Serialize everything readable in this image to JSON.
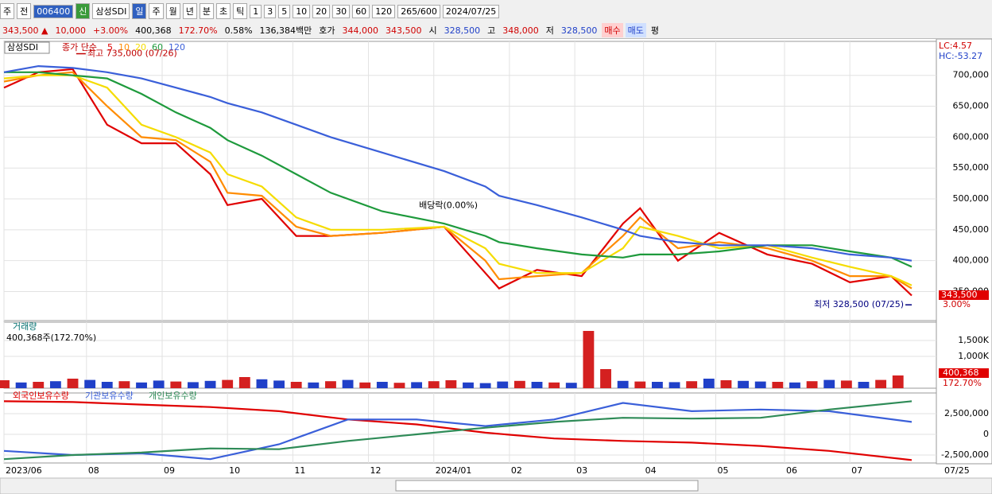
{
  "toolbar": {
    "items": [
      "주",
      "전",
      "006400",
      "신",
      "삼성SDI",
      "일",
      "주",
      "월",
      "년",
      "분",
      "초",
      "틱",
      "1",
      "3",
      "5",
      "10",
      "20",
      "30",
      "60",
      "120",
      "265/600",
      "2024/07/25"
    ]
  },
  "info": {
    "items": [
      "343,500 ▲",
      "10,000",
      "+3.00%",
      "400,368",
      "172.70%",
      "0.58%",
      "136,384백만",
      "호가",
      "344,000",
      "343,500",
      "시",
      "328,500",
      "고",
      "348,000",
      "저",
      "328,500",
      "매수",
      "매도",
      "평"
    ]
  },
  "chart_data": [
    {
      "type": "line",
      "panel": "price",
      "stock": "삼성SDI",
      "legend_prefix": "종가 단순",
      "xlim": [
        0,
        270
      ],
      "ylim": [
        303000,
        755000
      ],
      "yticks": [
        {
          "value": 700000,
          "label": "700,000"
        },
        {
          "value": 650000,
          "label": "650,000"
        },
        {
          "value": 600000,
          "label": "600,000"
        },
        {
          "value": 550000,
          "label": "550,000"
        },
        {
          "value": 500000,
          "label": "500,000"
        },
        {
          "value": 450000,
          "label": "450,000"
        },
        {
          "value": 400000,
          "label": "400,000"
        },
        {
          "value": 350000,
          "label": "350,000"
        }
      ],
      "xticks": [
        {
          "value": 0,
          "label": "2023/06"
        },
        {
          "value": 24,
          "label": "08"
        },
        {
          "value": 46,
          "label": "09"
        },
        {
          "value": 65,
          "label": "10"
        },
        {
          "value": 84,
          "label": "11"
        },
        {
          "value": 106,
          "label": "12"
        },
        {
          "value": 125,
          "label": "2024/01"
        },
        {
          "value": 147,
          "label": "02"
        },
        {
          "value": 166,
          "label": "03"
        },
        {
          "value": 186,
          "label": "04"
        },
        {
          "value": 207,
          "label": "05"
        },
        {
          "value": 227,
          "label": "06"
        },
        {
          "value": 246,
          "label": "07"
        }
      ],
      "x_end_label": "07/25",
      "x": [
        0,
        10,
        20,
        30,
        40,
        50,
        60,
        65,
        75,
        85,
        95,
        110,
        128,
        140,
        144,
        155,
        168,
        180,
        185,
        196,
        208,
        222,
        235,
        246,
        258,
        264
      ],
      "series": [
        {
          "name": "5",
          "color": "#e00000",
          "values": [
            680000,
            705000,
            710000,
            620000,
            590000,
            590000,
            540000,
            490000,
            500000,
            440000,
            440000,
            445000,
            455000,
            380000,
            355000,
            385000,
            375000,
            460000,
            485000,
            400000,
            445000,
            410000,
            395000,
            365000,
            375000,
            343500
          ]
        },
        {
          "name": "10",
          "color": "#ff8c00",
          "values": [
            690000,
            700000,
            705000,
            650000,
            600000,
            595000,
            560000,
            510000,
            505000,
            455000,
            440000,
            445000,
            455000,
            400000,
            370000,
            375000,
            380000,
            440000,
            470000,
            420000,
            430000,
            420000,
            400000,
            375000,
            375000,
            355000
          ]
        },
        {
          "name": "20",
          "color": "#f5dc00",
          "values": [
            695000,
            700000,
            700000,
            680000,
            620000,
            600000,
            575000,
            540000,
            520000,
            470000,
            450000,
            450000,
            455000,
            420000,
            395000,
            380000,
            380000,
            420000,
            455000,
            440000,
            420000,
            425000,
            405000,
            390000,
            375000,
            360000
          ]
        },
        {
          "name": "60",
          "color": "#1e9a3c",
          "values": [
            705000,
            705000,
            700000,
            695000,
            670000,
            640000,
            615000,
            595000,
            570000,
            540000,
            510000,
            480000,
            460000,
            440000,
            430000,
            420000,
            410000,
            405000,
            410000,
            410000,
            415000,
            425000,
            425000,
            415000,
            405000,
            390000
          ]
        },
        {
          "name": "120",
          "color": "#3a5fd9",
          "values": [
            705000,
            715000,
            712000,
            705000,
            695000,
            680000,
            665000,
            655000,
            640000,
            620000,
            600000,
            575000,
            545000,
            520000,
            505000,
            490000,
            470000,
            450000,
            440000,
            430000,
            425000,
            425000,
            420000,
            410000,
            405000,
            400000
          ]
        }
      ],
      "annotations": [
        {
          "text": "최고 735,000 (07/26)",
          "x": 21,
          "y": 735000,
          "color": "#c00000"
        },
        {
          "text": "배당락(0.00%)",
          "x": 126,
          "y": 470000,
          "color": "#000000"
        },
        {
          "text": "최저 328,500 (07/25)",
          "x": 264,
          "y": 328500,
          "color": "#000080"
        }
      ],
      "right_labels": [
        "LC:4.57",
        "HC:-53.27"
      ],
      "last_label": "343,500",
      "last_change": "3.00%"
    },
    {
      "type": "bar",
      "panel": "volume",
      "title": "거래량",
      "subtitle": "400,368주(172.70%)",
      "xlim": [
        0,
        270
      ],
      "ylim": [
        0,
        2075
      ],
      "yticks": [
        {
          "value": 1500,
          "label": "1,500K"
        },
        {
          "value": 1000,
          "label": "1,000K"
        }
      ],
      "up_color": "#d42020",
      "down_color": "#2040c8",
      "x": [
        0,
        5,
        10,
        15,
        20,
        25,
        30,
        35,
        40,
        45,
        50,
        55,
        60,
        65,
        70,
        75,
        80,
        85,
        90,
        95,
        100,
        105,
        110,
        115,
        120,
        125,
        130,
        135,
        140,
        145,
        150,
        155,
        160,
        165,
        170,
        175,
        180,
        185,
        190,
        195,
        200,
        205,
        210,
        215,
        220,
        225,
        230,
        235,
        240,
        245,
        250,
        255,
        260
      ],
      "values": [
        250,
        180,
        200,
        220,
        300,
        260,
        200,
        220,
        180,
        240,
        210,
        190,
        230,
        260,
        350,
        280,
        240,
        200,
        180,
        220,
        260,
        180,
        200,
        170,
        190,
        220,
        250,
        180,
        160,
        210,
        230,
        200,
        180,
        170,
        1800,
        600,
        230,
        210,
        200,
        190,
        220,
        300,
        250,
        230,
        210,
        200,
        180,
        220,
        260,
        240,
        200,
        260,
        400.368
      ],
      "directions": [
        "up",
        "down",
        "up",
        "down",
        "up",
        "down",
        "down",
        "up",
        "down",
        "down",
        "up",
        "down",
        "down",
        "up",
        "up",
        "down",
        "down",
        "up",
        "down",
        "up",
        "down",
        "up",
        "down",
        "up",
        "down",
        "up",
        "up",
        "down",
        "down",
        "down",
        "up",
        "down",
        "up",
        "down",
        "up",
        "up",
        "down",
        "up",
        "down",
        "down",
        "up",
        "down",
        "up",
        "down",
        "down",
        "up",
        "down",
        "up",
        "down",
        "up",
        "down",
        "up",
        "up"
      ],
      "last_label": "400,368",
      "last_change": "172.70%"
    },
    {
      "type": "line",
      "panel": "ownership",
      "xlim": [
        0,
        270
      ],
      "ylim": [
        -3460000,
        5000000
      ],
      "yticks": [
        {
          "value": 2500000,
          "label": "2,500,000"
        },
        0,
        {
          "value": -2500000,
          "label": "-2,500,000"
        }
      ],
      "x": [
        0,
        20,
        40,
        60,
        80,
        100,
        120,
        140,
        160,
        180,
        200,
        220,
        240,
        264
      ],
      "series": [
        {
          "name": "외국인보유수량",
          "color": "#e00000",
          "values": [
            4000000,
            3900000,
            3600000,
            3300000,
            2800000,
            1800000,
            1200000,
            200000,
            -500000,
            -800000,
            -1000000,
            -1400000,
            -2000000,
            -3100000
          ]
        },
        {
          "name": "기관보유수량",
          "color": "#3a5fd9",
          "values": [
            -2000000,
            -2500000,
            -2300000,
            -3000000,
            -1200000,
            1800000,
            1800000,
            1000000,
            1800000,
            3800000,
            2800000,
            3000000,
            2800000,
            1500000
          ]
        },
        {
          "name": "개인보유수량",
          "color": "#2e8b57",
          "values": [
            -3000000,
            -2500000,
            -2200000,
            -1700000,
            -1800000,
            -800000,
            0,
            800000,
            1500000,
            2000000,
            1900000,
            2000000,
            3000000,
            4000000
          ]
        }
      ]
    }
  ]
}
